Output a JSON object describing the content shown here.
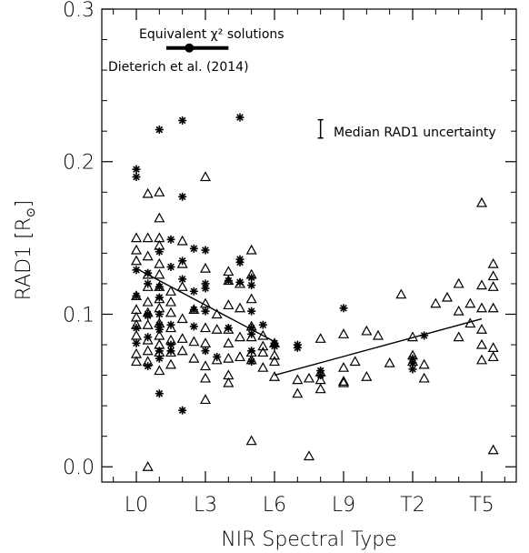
{
  "chart_data": {
    "type": "scatter",
    "xlabel": "NIR Spectral Type",
    "ylabel_main": "RAD1",
    "ylabel_unit": "[R",
    "ylabel_close": "]",
    "ylabel_symbol": "⊙",
    "xlim": [
      -1.5,
      16.5
    ],
    "ylim": [
      -0.01,
      0.3
    ],
    "x_ticks": [
      {
        "value": 0,
        "label": "L0"
      },
      {
        "value": 3,
        "label": "L3"
      },
      {
        "value": 6,
        "label": "L6"
      },
      {
        "value": 9,
        "label": "L9"
      },
      {
        "value": 12,
        "label": "T2"
      },
      {
        "value": 15,
        "label": "T5"
      }
    ],
    "y_ticks": [
      {
        "value": 0.0,
        "label": "0.0"
      },
      {
        "value": 0.1,
        "label": "0.1"
      },
      {
        "value": 0.2,
        "label": "0.2"
      },
      {
        "value": 0.3,
        "label": "0.3"
      }
    ],
    "annotations": {
      "equivalent_chi2": "Equivalent χ² solutions",
      "dieterich": "Dieterich et al. (2014)",
      "median_uncertainty": "Median RAD1 uncertainty"
    },
    "dieterich_bar": {
      "x_center": 2.3,
      "x_min": 1.3,
      "x_max": 4.0,
      "y": 0.2745
    },
    "uncertainty_bar": {
      "x": 8.0,
      "y_min": 0.2155,
      "y_max": 0.2275
    },
    "series": [
      {
        "marker": "triangle",
        "points": [
          [
            0,
            0.15
          ],
          [
            0,
            0.142
          ],
          [
            0,
            0.135
          ],
          [
            0,
            0.112
          ],
          [
            0,
            0.103
          ],
          [
            0,
            0.098
          ],
          [
            0,
            0.093
          ],
          [
            0,
            0.086
          ],
          [
            0,
            0.074
          ],
          [
            0,
            0.069
          ],
          [
            0.5,
            0.15
          ],
          [
            0.5,
            0.138
          ],
          [
            0.5,
            0.126
          ],
          [
            0.5,
            0.118
          ],
          [
            0.5,
            0.108
          ],
          [
            0.5,
            0.101
          ],
          [
            0.5,
            0.093
          ],
          [
            0.5,
            0.083
          ],
          [
            0.5,
            0.076
          ],
          [
            0.5,
            0.069
          ],
          [
            0.5,
            0.0
          ],
          [
            0.5,
            0.179
          ],
          [
            1,
            0.18
          ],
          [
            1,
            0.163
          ],
          [
            1,
            0.15
          ],
          [
            1,
            0.145
          ],
          [
            1,
            0.133
          ],
          [
            1,
            0.126
          ],
          [
            1,
            0.118
          ],
          [
            1,
            0.11
          ],
          [
            1,
            0.104
          ],
          [
            1,
            0.094
          ],
          [
            1,
            0.086
          ],
          [
            1,
            0.08
          ],
          [
            1,
            0.075
          ],
          [
            1,
            0.063
          ],
          [
            1.5,
            0.115
          ],
          [
            1.5,
            0.108
          ],
          [
            1.5,
            0.101
          ],
          [
            1.5,
            0.091
          ],
          [
            1.5,
            0.083
          ],
          [
            1.5,
            0.075
          ],
          [
            1.5,
            0.067
          ],
          [
            2,
            0.148
          ],
          [
            2,
            0.133
          ],
          [
            2,
            0.118
          ],
          [
            2,
            0.097
          ],
          [
            2,
            0.084
          ],
          [
            2,
            0.076
          ],
          [
            2.5,
            0.103
          ],
          [
            2.5,
            0.082
          ],
          [
            2.5,
            0.071
          ],
          [
            3,
            0.19
          ],
          [
            3,
            0.13
          ],
          [
            3,
            0.107
          ],
          [
            3,
            0.091
          ],
          [
            3,
            0.081
          ],
          [
            3,
            0.066
          ],
          [
            3,
            0.058
          ],
          [
            3,
            0.044
          ],
          [
            3.5,
            0.1
          ],
          [
            3.5,
            0.09
          ],
          [
            3.5,
            0.07
          ],
          [
            4,
            0.128
          ],
          [
            4,
            0.122
          ],
          [
            4,
            0.106
          ],
          [
            4,
            0.09
          ],
          [
            4,
            0.081
          ],
          [
            4,
            0.071
          ],
          [
            4,
            0.06
          ],
          [
            4,
            0.055
          ],
          [
            4.5,
            0.12
          ],
          [
            4.5,
            0.104
          ],
          [
            4.5,
            0.085
          ],
          [
            4.5,
            0.072
          ],
          [
            5,
            0.142
          ],
          [
            5,
            0.126
          ],
          [
            5,
            0.11
          ],
          [
            5,
            0.092
          ],
          [
            5,
            0.085
          ],
          [
            5,
            0.075
          ],
          [
            5,
            0.07
          ],
          [
            5,
            0.017
          ],
          [
            5.5,
            0.086
          ],
          [
            5.5,
            0.079
          ],
          [
            5.5,
            0.075
          ],
          [
            5.5,
            0.065
          ],
          [
            6,
            0.081
          ],
          [
            6,
            0.073
          ],
          [
            6,
            0.069
          ],
          [
            6,
            0.059
          ],
          [
            7,
            0.057
          ],
          [
            7,
            0.048
          ],
          [
            7.5,
            0.058
          ],
          [
            7.5,
            0.007
          ],
          [
            8,
            0.084
          ],
          [
            8,
            0.062
          ],
          [
            8,
            0.057
          ],
          [
            8,
            0.051
          ],
          [
            9,
            0.087
          ],
          [
            9,
            0.065
          ],
          [
            9,
            0.056
          ],
          [
            9,
            0.055
          ],
          [
            9.5,
            0.069
          ],
          [
            10,
            0.089
          ],
          [
            10,
            0.059
          ],
          [
            10.5,
            0.086
          ],
          [
            11,
            0.068
          ],
          [
            11.5,
            0.113
          ],
          [
            12,
            0.085
          ],
          [
            12,
            0.073
          ],
          [
            12,
            0.069
          ],
          [
            12.5,
            0.067
          ],
          [
            12.5,
            0.058
          ],
          [
            13,
            0.107
          ],
          [
            13.5,
            0.111
          ],
          [
            14,
            0.12
          ],
          [
            14,
            0.102
          ],
          [
            14,
            0.085
          ],
          [
            14.5,
            0.107
          ],
          [
            14.5,
            0.094
          ],
          [
            15,
            0.173
          ],
          [
            15,
            0.119
          ],
          [
            15,
            0.104
          ],
          [
            15,
            0.09
          ],
          [
            15,
            0.08
          ],
          [
            15,
            0.07
          ],
          [
            15.5,
            0.133
          ],
          [
            15.5,
            0.125
          ],
          [
            15.5,
            0.118
          ],
          [
            15.5,
            0.104
          ],
          [
            15.5,
            0.078
          ],
          [
            15.5,
            0.072
          ],
          [
            15.5,
            0.011
          ]
        ]
      },
      {
        "marker": "asterisk",
        "points": [
          [
            0,
            0.195
          ],
          [
            0,
            0.19
          ],
          [
            0,
            0.129
          ],
          [
            0,
            0.112
          ],
          [
            0,
            0.091
          ],
          [
            0,
            0.081
          ],
          [
            0.5,
            0.127
          ],
          [
            0.5,
            0.12
          ],
          [
            0.5,
            0.1
          ],
          [
            0.5,
            0.099
          ],
          [
            0.5,
            0.085
          ],
          [
            0.5,
            0.066
          ],
          [
            1,
            0.221
          ],
          [
            1,
            0.141
          ],
          [
            1,
            0.118
          ],
          [
            1,
            0.111
          ],
          [
            1,
            0.1
          ],
          [
            1,
            0.093
          ],
          [
            1,
            0.09
          ],
          [
            1,
            0.076
          ],
          [
            1,
            0.071
          ],
          [
            1,
            0.048
          ],
          [
            1.5,
            0.149
          ],
          [
            1.5,
            0.131
          ],
          [
            1.5,
            0.093
          ],
          [
            1.5,
            0.08
          ],
          [
            1.5,
            0.076
          ],
          [
            2,
            0.227
          ],
          [
            2,
            0.177
          ],
          [
            2,
            0.135
          ],
          [
            2,
            0.123
          ],
          [
            2,
            0.037
          ],
          [
            2.5,
            0.143
          ],
          [
            2.5,
            0.115
          ],
          [
            2.5,
            0.103
          ],
          [
            2.5,
            0.092
          ],
          [
            3,
            0.142
          ],
          [
            3,
            0.12
          ],
          [
            3,
            0.117
          ],
          [
            3,
            0.102
          ],
          [
            3,
            0.076
          ],
          [
            3.5,
            0.072
          ],
          [
            4,
            0.122
          ],
          [
            4,
            0.091
          ],
          [
            4.5,
            0.229
          ],
          [
            4.5,
            0.136
          ],
          [
            4.5,
            0.134
          ],
          [
            4.5,
            0.121
          ],
          [
            5,
            0.124
          ],
          [
            5,
            0.119
          ],
          [
            5,
            0.102
          ],
          [
            5,
            0.091
          ],
          [
            5,
            0.087
          ],
          [
            5,
            0.076
          ],
          [
            5,
            0.069
          ],
          [
            5.5,
            0.093
          ],
          [
            6,
            0.081
          ],
          [
            6,
            0.079
          ],
          [
            7,
            0.08
          ],
          [
            7,
            0.078
          ],
          [
            8,
            0.063
          ],
          [
            8,
            0.06
          ],
          [
            9,
            0.104
          ],
          [
            12,
            0.071
          ],
          [
            12,
            0.068
          ],
          [
            12,
            0.064
          ],
          [
            12.5,
            0.086
          ]
        ]
      }
    ],
    "fit_lines": [
      {
        "x": [
          0,
          6
        ],
        "y": [
          0.13,
          0.082
        ]
      },
      {
        "x": [
          6,
          15
        ],
        "y": [
          0.06,
          0.097
        ]
      }
    ]
  }
}
